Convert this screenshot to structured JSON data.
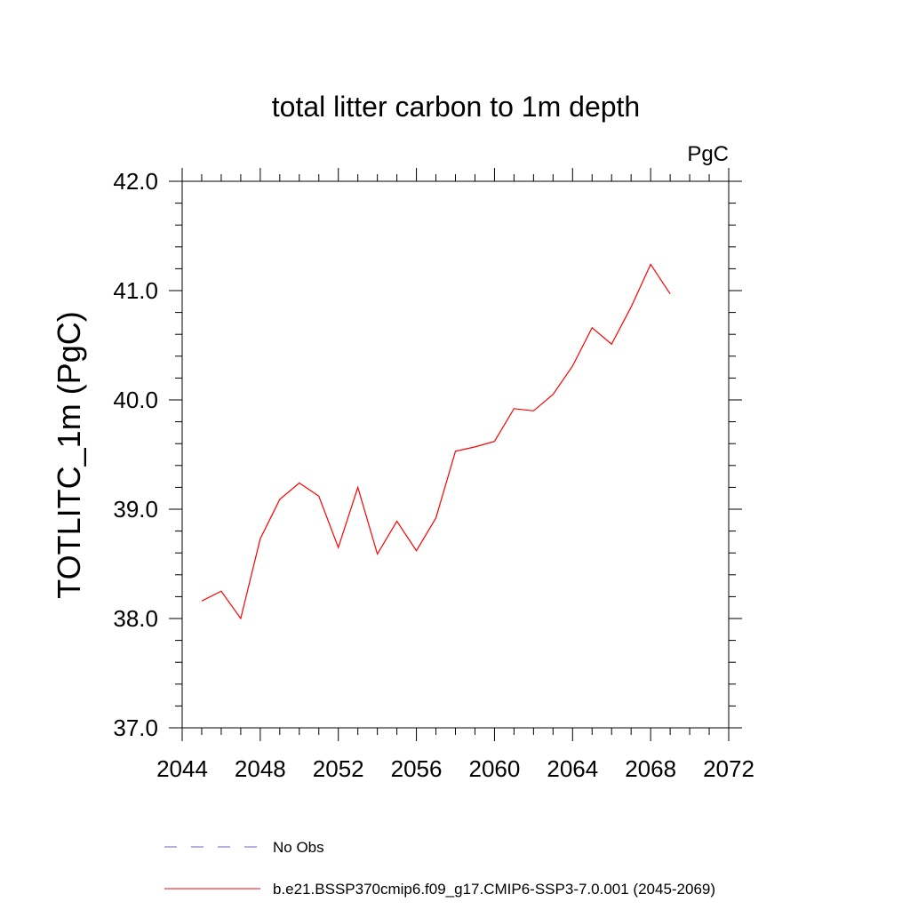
{
  "chart_data": {
    "type": "line",
    "title": "total litter carbon to 1m depth",
    "units_label": "PgC",
    "ylabel": "TOTLITC_1m  (PgC)",
    "xlabel": "",
    "xlim": [
      2044,
      2072
    ],
    "ylim": [
      37.0,
      42.0
    ],
    "x_ticks": [
      2044,
      2048,
      2052,
      2056,
      2060,
      2064,
      2068,
      2072
    ],
    "x_tick_labels": [
      "2044",
      "2048",
      "2052",
      "2056",
      "2060",
      "2064",
      "2068",
      "2072"
    ],
    "y_ticks": [
      37.0,
      38.0,
      39.0,
      40.0,
      41.0,
      42.0
    ],
    "y_tick_labels": [
      "37.0",
      "38.0",
      "39.0",
      "40.0",
      "41.0",
      "42.0"
    ],
    "grid": false,
    "legend_position": "bottom",
    "series": [
      {
        "name": "b.e21.BSSP370cmip6.f09_g17.CMIP6-SSP3-7.0.001 (2045-2069)",
        "color": "#ff0000",
        "line_style": "solid",
        "x": [
          2045,
          2046,
          2047,
          2048,
          2049,
          2050,
          2051,
          2052,
          2053,
          2054,
          2055,
          2056,
          2057,
          2058,
          2059,
          2060,
          2061,
          2062,
          2063,
          2064,
          2065,
          2066,
          2067,
          2068,
          2069
        ],
        "values": [
          38.16,
          38.25,
          38.0,
          38.73,
          39.09,
          39.24,
          39.12,
          38.65,
          39.2,
          38.59,
          38.89,
          38.62,
          38.92,
          39.53,
          39.57,
          39.62,
          39.92,
          39.9,
          40.05,
          40.31,
          40.66,
          40.51,
          40.85,
          41.24,
          40.97
        ]
      }
    ],
    "legend": [
      {
        "label": "No Obs",
        "color": "#6666bb",
        "line_style": "dashed"
      },
      {
        "label": "b.e21.BSSP370cmip6.f09_g17.CMIP6-SSP3-7.0.001 (2045-2069)",
        "color": "#ff0000",
        "line_style": "solid"
      }
    ]
  }
}
